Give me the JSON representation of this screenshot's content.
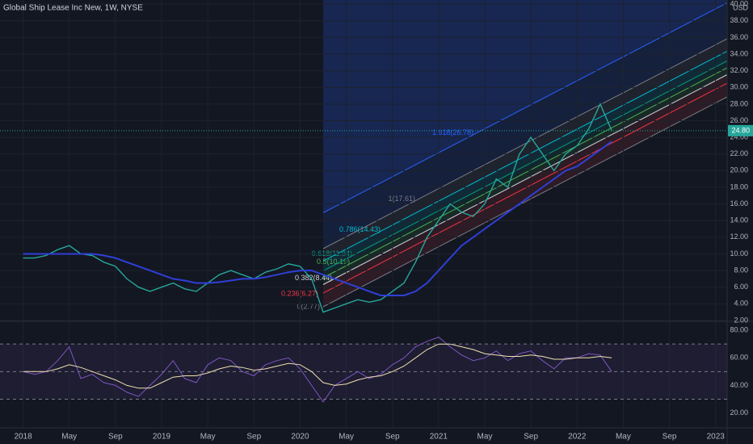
{
  "chart_data": {
    "type": "line",
    "title": "Global Ship Lease Inc New, 1W, NYSE",
    "currency": "USD",
    "x": [
      "2018-01",
      "2018-02",
      "2018-03",
      "2018-04",
      "2018-05",
      "2018-06",
      "2018-07",
      "2018-08",
      "2018-09",
      "2018-10",
      "2018-11",
      "2018-12",
      "2019-01",
      "2019-02",
      "2019-03",
      "2019-04",
      "2019-05",
      "2019-06",
      "2019-07",
      "2019-08",
      "2019-09",
      "2019-10",
      "2019-11",
      "2019-12",
      "2020-01",
      "2020-02",
      "2020-03",
      "2020-04",
      "2020-05",
      "2020-06",
      "2020-07",
      "2020-08",
      "2020-09",
      "2020-10",
      "2020-11",
      "2020-12",
      "2021-01",
      "2021-02",
      "2021-03",
      "2021-04",
      "2021-05",
      "2021-06",
      "2021-07",
      "2021-08",
      "2021-09",
      "2021-10",
      "2021-11",
      "2021-12",
      "2022-01",
      "2022-02",
      "2022-03",
      "2022-04"
    ],
    "series": [
      {
        "color": "#26a69a",
        "values": [
          9.5,
          9.5,
          9.8,
          10.5,
          11,
          10,
          9.8,
          9,
          8.5,
          7,
          6,
          5.5,
          6,
          6.5,
          5.8,
          5.5,
          6.5,
          7.5,
          8,
          7.5,
          7,
          7.8,
          8.2,
          8.8,
          8.5,
          7,
          3,
          3.5,
          4,
          4.5,
          4.2,
          4.5,
          5.5,
          6.5,
          9,
          12,
          14,
          16,
          15,
          14.5,
          16,
          19,
          18,
          22,
          24,
          22,
          20,
          22,
          23,
          25,
          28,
          24.8
        ]
      },
      {
        "color": "#2f3fd8",
        "values": [
          10,
          10,
          10,
          10,
          10,
          10,
          10,
          9.8,
          9.5,
          9,
          8.5,
          8,
          7.5,
          7,
          6.8,
          6.5,
          6.5,
          6.6,
          6.8,
          7,
          7,
          7.2,
          7.5,
          7.8,
          8,
          8,
          7.5,
          7,
          6.5,
          6,
          5.5,
          5,
          5,
          5,
          5.5,
          6.5,
          8,
          9.5,
          11,
          12,
          13,
          14,
          15,
          16,
          17,
          18,
          19,
          20,
          20.5,
          21.5,
          22.5,
          23.5
        ]
      }
    ],
    "xlim": [
      "2017-11",
      "2023-02"
    ],
    "xticks": [
      {
        "value": "2018-01",
        "label": "2018"
      },
      {
        "value": "2018-05",
        "label": "May"
      },
      {
        "value": "2018-09",
        "label": "Sep"
      },
      {
        "value": "2019-01",
        "label": "2019"
      },
      {
        "value": "2019-05",
        "label": "May"
      },
      {
        "value": "2019-09",
        "label": "Sep"
      },
      {
        "value": "2020-01",
        "label": "2020"
      },
      {
        "value": "2020-05",
        "label": "May"
      },
      {
        "value": "2020-09",
        "label": "Sep"
      },
      {
        "value": "2021-01",
        "label": "2021"
      },
      {
        "value": "2021-05",
        "label": "May"
      },
      {
        "value": "2021-09",
        "label": "Sep"
      },
      {
        "value": "2022-01",
        "label": "2022"
      },
      {
        "value": "2022-05",
        "label": "May"
      },
      {
        "value": "2022-09",
        "label": "Sep"
      },
      {
        "value": "2023-01",
        "label": "2023"
      }
    ],
    "ylim": [
      1.9,
      40.5
    ],
    "yticks": [
      {
        "value": 2,
        "label": "2.00"
      },
      {
        "value": 4,
        "label": "4.00"
      },
      {
        "value": 6,
        "label": "6.00"
      },
      {
        "value": 8,
        "label": "8.00"
      },
      {
        "value": 10,
        "label": "10.00"
      },
      {
        "value": 12,
        "label": "12.00"
      },
      {
        "value": 14,
        "label": "14.00"
      },
      {
        "value": 16,
        "label": "16.00"
      },
      {
        "value": 18,
        "label": "18.00"
      },
      {
        "value": 20,
        "label": "20.00"
      },
      {
        "value": 22,
        "label": "22.00"
      },
      {
        "value": 24,
        "label": "24.00"
      },
      {
        "value": 26,
        "label": "26.00"
      },
      {
        "value": 28,
        "label": "28.00"
      },
      {
        "value": 30,
        "label": "30.00"
      },
      {
        "value": 32,
        "label": "32.00"
      },
      {
        "value": 34,
        "label": "34.00"
      },
      {
        "value": 36,
        "label": "36.00"
      },
      {
        "value": 38,
        "label": "38.00"
      },
      {
        "value": 40,
        "label": "40.00"
      }
    ],
    "last_price": {
      "value": 24.8,
      "label": "24.80"
    },
    "fib_levels": [
      {
        "value": 0,
        "label": "0(2.77)",
        "color": "#787b86"
      },
      {
        "value": 0.236,
        "label": "0.236(6.27)",
        "color": "#f23645"
      },
      {
        "value": 0.382,
        "label": "0.382(8.44)",
        "color": "#d1d4dc"
      },
      {
        "value": 0.5,
        "label": "0.5(10.19)",
        "color": "#4caf50"
      },
      {
        "value": 0.618,
        "label": "0.618(11.94)",
        "color": "#089981"
      },
      {
        "value": 0.786,
        "label": "0.786(14.43)",
        "color": "#00bcd4"
      },
      {
        "value": 1,
        "label": "1(17.61)",
        "color": "#787b86"
      },
      {
        "value": 1.618,
        "label": "1.618(26.78)",
        "color": "#2962ff"
      }
    ],
    "rsi": {
      "ylim": [
        9.2,
        86.5
      ],
      "yticks": [
        {
          "value": 20,
          "label": "20.00"
        },
        {
          "value": 40,
          "label": "40.00"
        },
        {
          "value": 60,
          "label": "60.00"
        },
        {
          "value": 80,
          "label": "80.00"
        }
      ],
      "levels": [
        30,
        50,
        70
      ],
      "series": [
        {
          "color": "#7e57c2",
          "values": [
            50,
            48,
            50,
            58,
            68,
            45,
            48,
            42,
            40,
            35,
            32,
            40,
            48,
            58,
            45,
            42,
            55,
            60,
            58,
            50,
            47,
            55,
            58,
            60,
            52,
            40,
            28,
            40,
            45,
            50,
            45,
            48,
            55,
            60,
            68,
            72,
            75,
            68,
            62,
            58,
            60,
            65,
            58,
            63,
            65,
            58,
            52,
            60,
            60,
            63,
            62,
            50
          ]
        },
        {
          "color": "#f0e0b0",
          "values": [
            50,
            50,
            50,
            52,
            55,
            53,
            50,
            47,
            44,
            40,
            38,
            38,
            42,
            46,
            47,
            47,
            49,
            52,
            54,
            53,
            51,
            52,
            54,
            56,
            55,
            50,
            42,
            40,
            41,
            44,
            46,
            47,
            50,
            54,
            60,
            66,
            70,
            70,
            68,
            66,
            63,
            62,
            61,
            61,
            62,
            61,
            59,
            59,
            60,
            60,
            61,
            60
          ]
        }
      ]
    }
  }
}
